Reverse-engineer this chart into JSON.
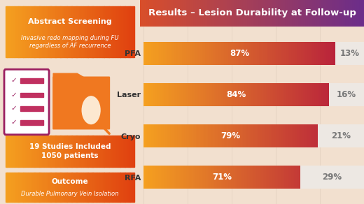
{
  "title": "Results – Lesion Durability at Follow-up",
  "categories": [
    "PFA",
    "Laser",
    "Cryo",
    "RFA"
  ],
  "persistent_values": [
    87,
    84,
    79,
    71
  ],
  "reconnection_values": [
    13,
    16,
    21,
    29
  ],
  "bg_color": "#f2e0cf",
  "title_grad_left": "#d94f2b",
  "title_grad_right": "#6b2d8b",
  "bar_grad_left": "#f5a020",
  "bar_grad_right": "#b01040",
  "reconnection_color": "#ede8e3",
  "left_box_grad_left": "#f5a020",
  "left_box_grad_right": "#e04010",
  "legend_ablation_color": "#d94f2b",
  "label_fontsize": 7.0,
  "bar_label_fontsize": 8.5,
  "title_fontsize": 9.5
}
